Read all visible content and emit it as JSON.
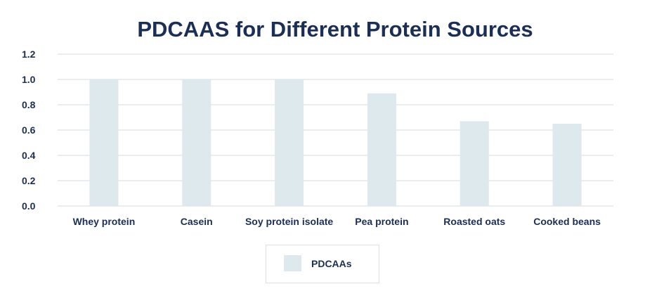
{
  "chart_data": {
    "type": "bar",
    "title": "PDCAAS for Different Protein Sources",
    "categories": [
      "Whey protein",
      "Casein",
      "Soy protein isolate",
      "Pea protein",
      "Roasted oats",
      "Cooked beans"
    ],
    "series": [
      {
        "name": "PDCAAs",
        "values": [
          1.0,
          1.0,
          1.0,
          0.89,
          0.67,
          0.65
        ]
      }
    ],
    "yticks": [
      "0.0",
      "0.2",
      "0.4",
      "0.6",
      "0.8",
      "1.0",
      "1.2"
    ],
    "ylim": [
      0,
      1.2
    ],
    "xlabel": "",
    "ylabel": "",
    "grid": true,
    "legend_position": "bottom-center",
    "colors": {
      "bar": "#dde9ec",
      "text": "#1a2e57",
      "grid": "#d6dbe2"
    }
  }
}
